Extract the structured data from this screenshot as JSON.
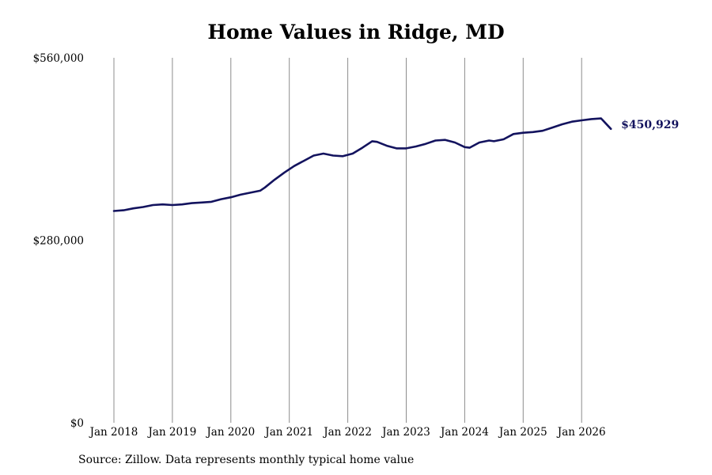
{
  "chart_data": {
    "type": "line",
    "title": "Home Values in Ridge, MD",
    "xlabel": "",
    "ylabel": "",
    "x_tick_labels": [
      "Jan 2018",
      "Jan 2019",
      "Jan 2020",
      "Jan 2021",
      "Jan 2022",
      "Jan 2023",
      "Jan 2024",
      "Jan 2025",
      "Jan 2026"
    ],
    "y_tick_labels": [
      "$0",
      "$280,000",
      "$560,000"
    ],
    "y_ticks": [
      0,
      280000,
      560000
    ],
    "xlim": [
      "2018-01",
      "2026-07"
    ],
    "ylim": [
      0,
      560000
    ],
    "grid": {
      "vertical": true,
      "horizontal": false
    },
    "legend": "none",
    "line_color": "#13135e",
    "end_label": "$450,929",
    "series": [
      {
        "x": [
          "2018-01",
          "2018-03",
          "2018-05",
          "2018-07",
          "2018-09",
          "2018-11",
          "2019-01",
          "2019-03",
          "2019-05",
          "2019-07",
          "2019-09",
          "2019-11",
          "2020-01",
          "2020-03",
          "2020-05",
          "2020-07",
          "2020-08",
          "2020-10",
          "2020-12",
          "2021-02",
          "2021-04",
          "2021-06",
          "2021-08",
          "2021-10",
          "2021-12",
          "2022-02",
          "2022-04",
          "2022-06",
          "2022-07",
          "2022-09",
          "2022-11",
          "2023-01",
          "2023-03",
          "2023-05",
          "2023-07",
          "2023-09",
          "2023-11",
          "2024-01",
          "2024-02",
          "2024-04",
          "2024-06",
          "2024-07",
          "2024-09",
          "2024-11",
          "2025-01",
          "2025-03",
          "2025-05",
          "2025-07",
          "2025-09",
          "2025-11",
          "2026-01",
          "2026-03",
          "2026-05",
          "2026-07"
        ],
        "values": [
          325000,
          326000,
          329000,
          331000,
          334000,
          335000,
          334000,
          335000,
          337000,
          338000,
          339000,
          343000,
          346000,
          350000,
          353000,
          356000,
          361000,
          373000,
          384000,
          394000,
          402000,
          410000,
          413000,
          410000,
          409000,
          413000,
          422000,
          432000,
          431000,
          425000,
          421000,
          421000,
          424000,
          428000,
          433000,
          434000,
          430000,
          423000,
          422000,
          430000,
          433000,
          432000,
          435000,
          443000,
          445000,
          446000,
          448000,
          453000,
          458000,
          462000,
          464000,
          466000,
          467000,
          450929
        ]
      }
    ]
  },
  "source_note": "Source: Zillow. Data represents monthly typical home value"
}
